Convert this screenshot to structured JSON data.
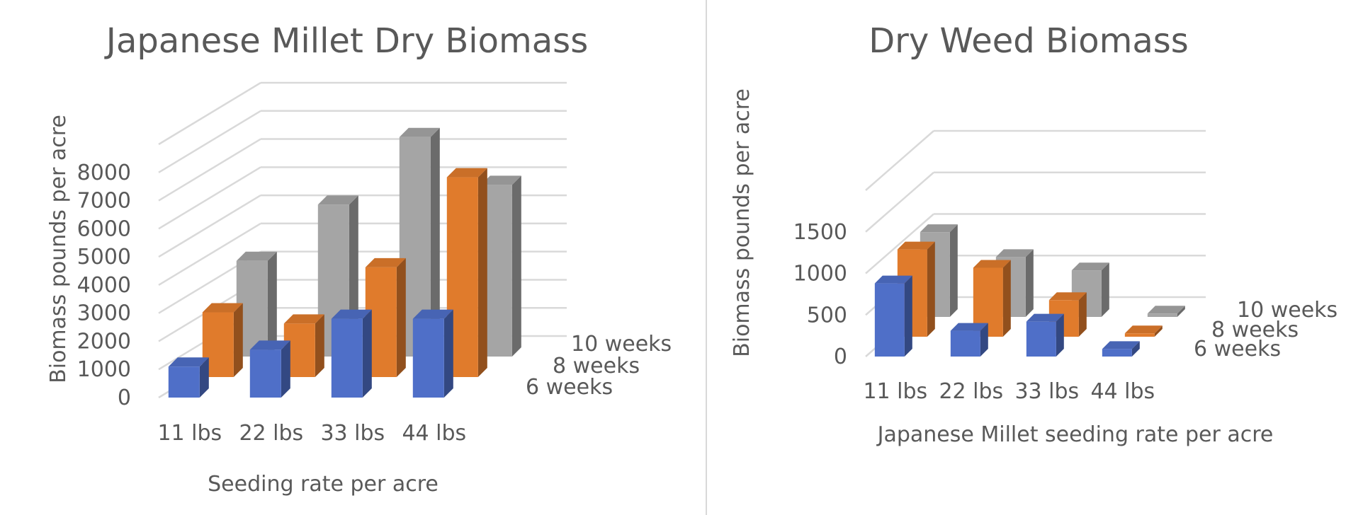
{
  "chart_data": [
    {
      "type": "bar",
      "subtype": "3d-column",
      "title": "Japanese Millet Dry Biomass",
      "xlabel": "Seeding rate per acre",
      "ylabel": "Biomass pounds per acre",
      "categories": [
        "11 lbs",
        "22 lbs",
        "33 lbs",
        "44 lbs"
      ],
      "yticks": [
        "0",
        "1000",
        "2000",
        "3000",
        "4000",
        "5000",
        "6000",
        "7000",
        "8000"
      ],
      "ylim": [
        0,
        9000
      ],
      "grid": true,
      "series": [
        {
          "name": "6 weeks",
          "values": [
            1100,
            1700,
            2800,
            2800
          ]
        },
        {
          "name": "8 weeks",
          "values": [
            2300,
            1900,
            3900,
            7100
          ]
        },
        {
          "name": "10 weeks",
          "values": [
            3400,
            5400,
            7800,
            6100
          ]
        }
      ],
      "colors": {
        "6 weeks": "#4f6fc8",
        "8 weeks": "#e07b2c",
        "10 weeks": "#a5a5a5"
      }
    },
    {
      "type": "bar",
      "subtype": "3d-column",
      "title": "Dry Weed Biomass",
      "xlabel": "Japanese Millet seeding rate per acre",
      "ylabel": "Biomass pounds per acre",
      "categories": [
        "11 lbs",
        "22 lbs",
        "33 lbs",
        "44 lbs"
      ],
      "yticks": [
        "0",
        "500",
        "1000",
        "1500"
      ],
      "ylim": [
        0,
        2000
      ],
      "grid": true,
      "series": [
        {
          "name": "6 weeks",
          "values": [
            880,
            310,
            420,
            90
          ]
        },
        {
          "name": "8 weeks",
          "values": [
            1050,
            830,
            440,
            40
          ]
        },
        {
          "name": "10 weeks",
          "values": [
            1020,
            720,
            560,
            40
          ]
        }
      ],
      "colors": {
        "6 weeks": "#4f6fc8",
        "8 weeks": "#e07b2c",
        "10 weeks": "#a5a5a5"
      }
    }
  ]
}
